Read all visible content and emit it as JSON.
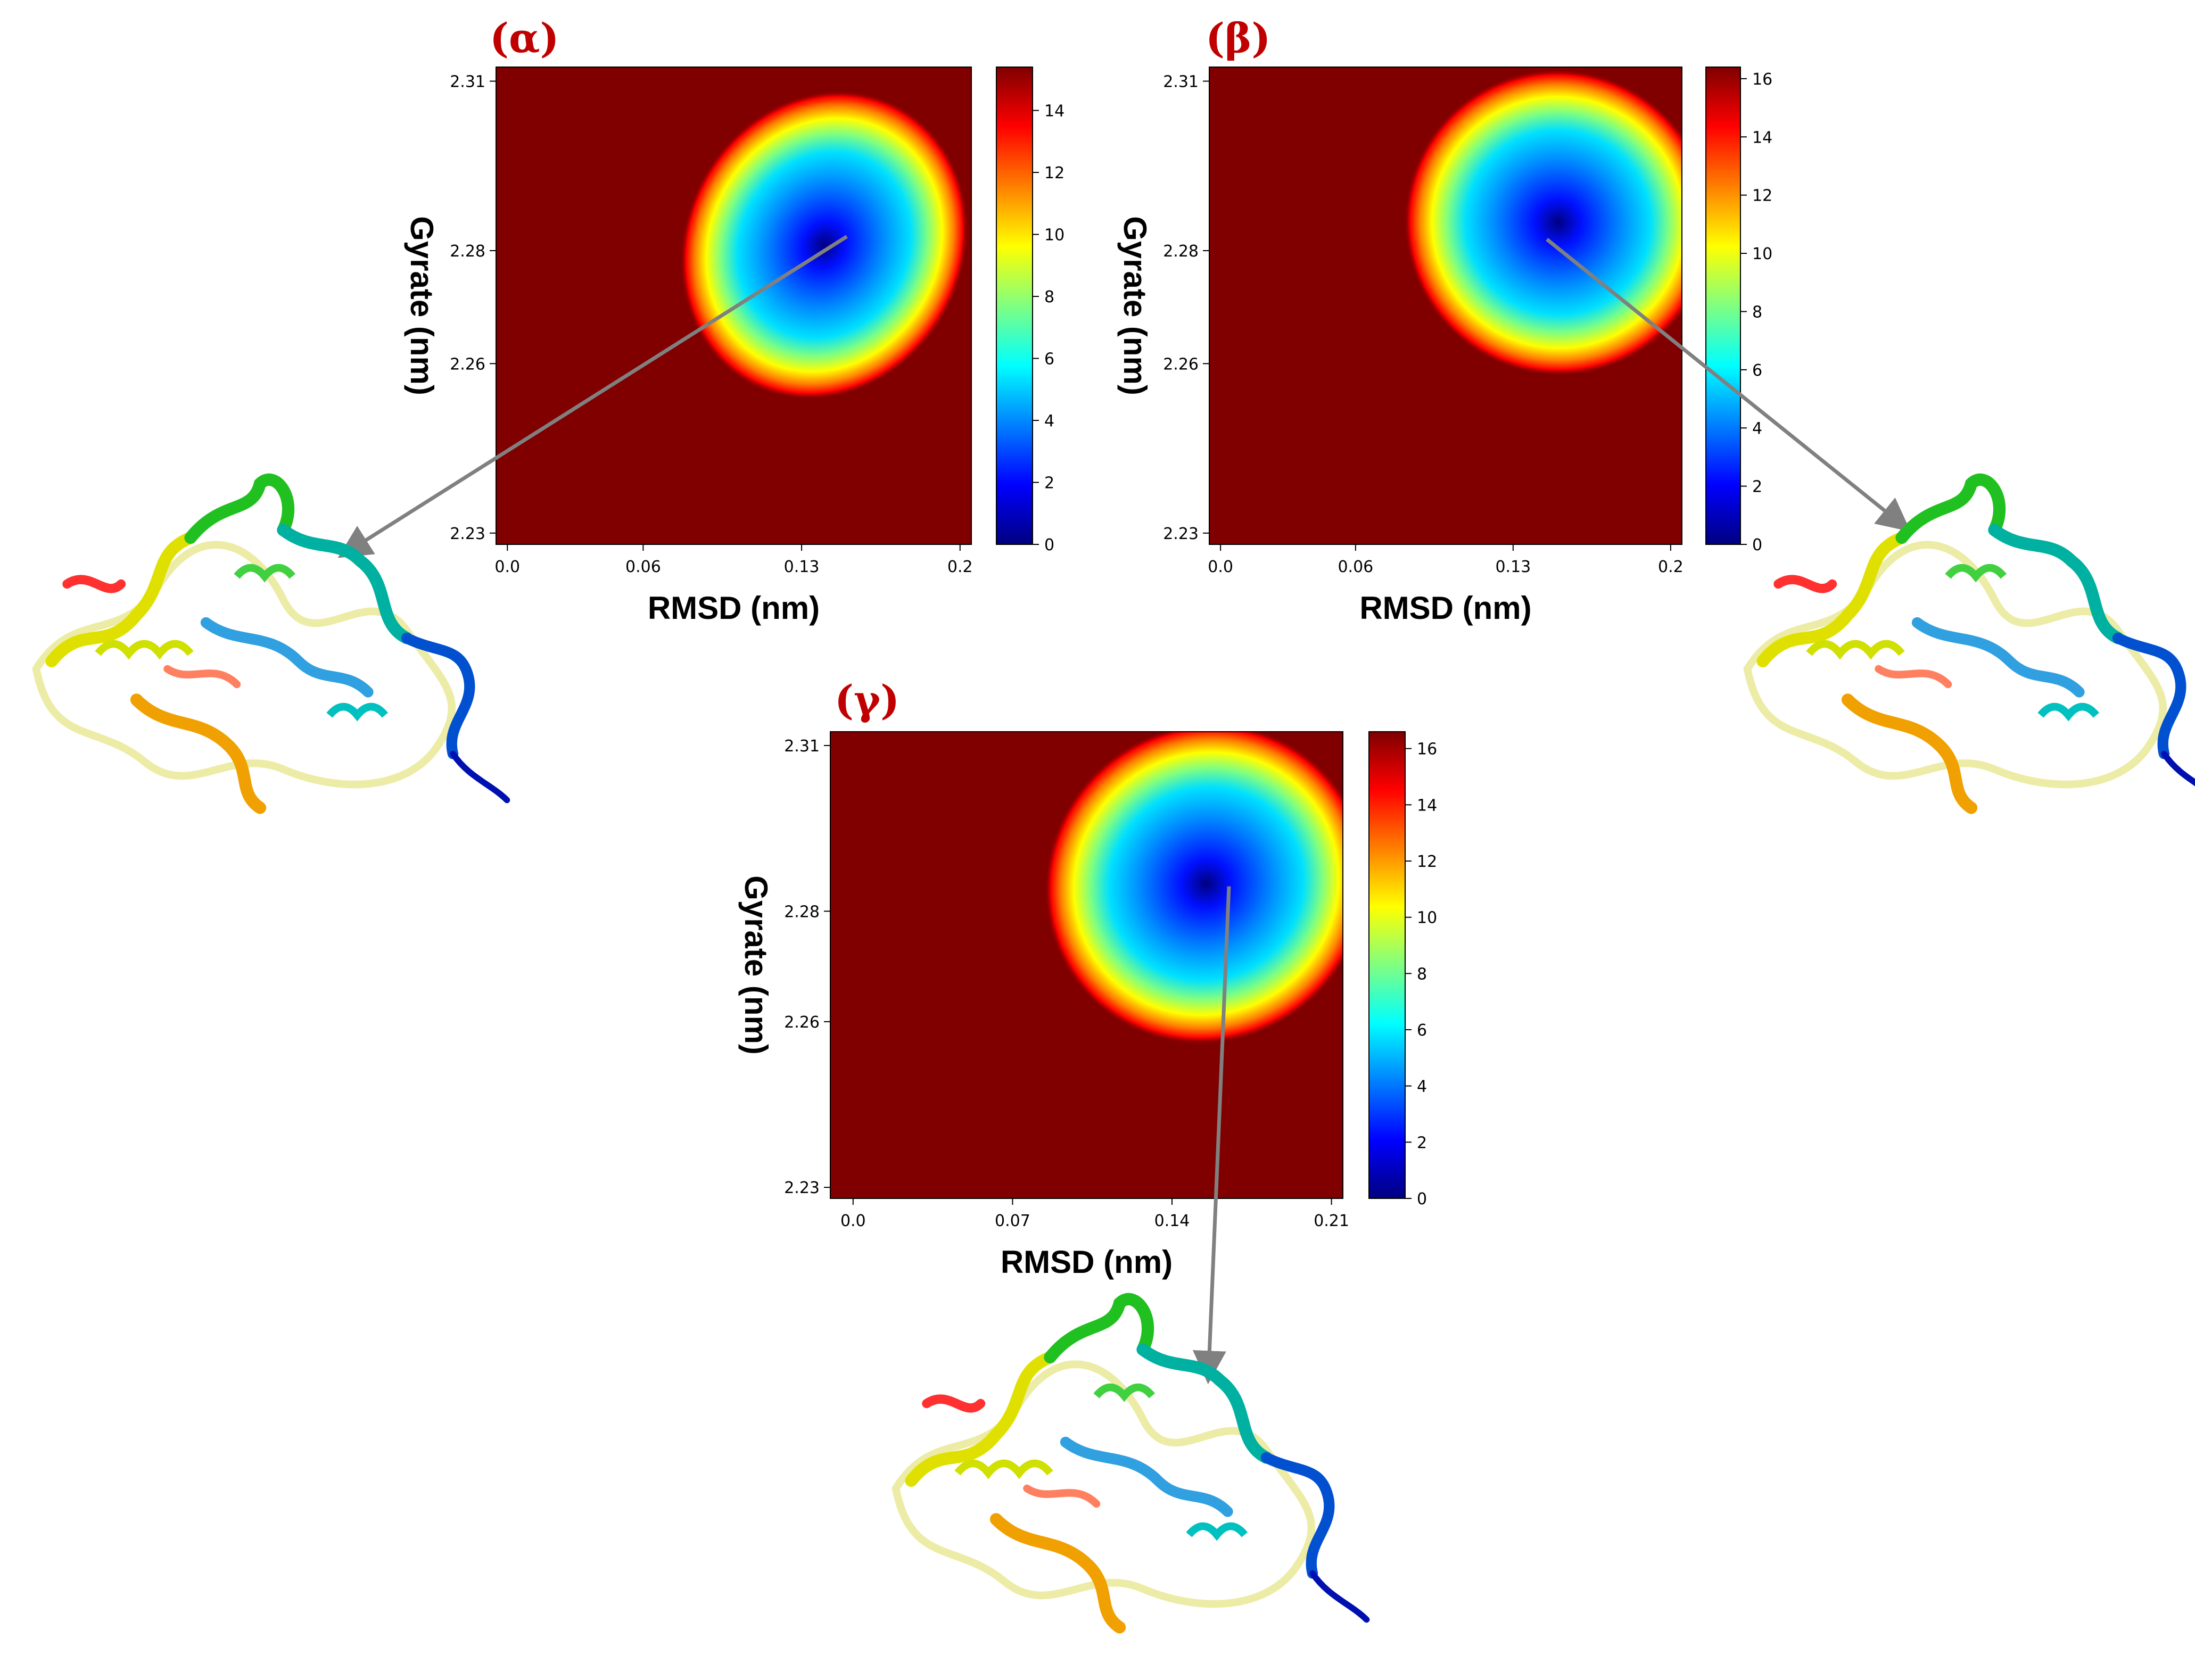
{
  "colors": {
    "panel_label": "#c00000",
    "background_field": "#800000",
    "arrow": "#808080"
  },
  "colormap": "jet",
  "icons": [
    "protein-ribbon-structure"
  ],
  "chart_data": [
    {
      "type": "heatmap",
      "panel_label": "(α)",
      "xlabel": "RMSD (nm)",
      "ylabel": "Gyrate (nm)",
      "xlim": [
        -0.005,
        0.205
      ],
      "ylim": [
        2.228,
        2.3125
      ],
      "x_ticks": [
        0.0,
        0.06,
        0.13,
        0.2
      ],
      "x_tick_labels": [
        "0.0",
        "0.06",
        "0.13",
        "0.2"
      ],
      "y_ticks": [
        2.23,
        2.26,
        2.28,
        2.31
      ],
      "y_tick_labels": [
        "2.23",
        "2.26",
        "2.28",
        "2.31"
      ],
      "colorbar": {
        "min": 0,
        "max": 15.4,
        "ticks": [
          0,
          2,
          4,
          6,
          8,
          10,
          12,
          14
        ],
        "tick_labels": [
          "0",
          "2",
          "4",
          "6",
          "8",
          "10",
          "12",
          "14"
        ]
      },
      "basin": {
        "center": [
          0.14,
          2.281
        ],
        "semi_major": 0.07,
        "semi_minor": 0.0095,
        "angle_deg": 62
      },
      "arrow_from": [
        0.15,
        2.2825
      ]
    },
    {
      "type": "heatmap",
      "panel_label": "(β)",
      "xlabel": "RMSD (nm)",
      "ylabel": "Gyrate (nm)",
      "xlim": [
        -0.005,
        0.205
      ],
      "ylim": [
        2.228,
        2.3125
      ],
      "x_ticks": [
        0.0,
        0.06,
        0.13,
        0.2
      ],
      "x_tick_labels": [
        "0.0",
        "0.06",
        "0.13",
        "0.2"
      ],
      "y_ticks": [
        2.23,
        2.26,
        2.28,
        2.31
      ],
      "y_tick_labels": [
        "2.23",
        "2.26",
        "2.28",
        "2.31"
      ],
      "colorbar": {
        "min": 0,
        "max": 16.4,
        "ticks": [
          0,
          2,
          4,
          6,
          8,
          10,
          12,
          14,
          16
        ],
        "tick_labels": [
          "0",
          "2",
          "4",
          "6",
          "8",
          "10",
          "12",
          "14",
          "16"
        ]
      },
      "basin": {
        "center": [
          0.15,
          2.285
        ],
        "semi_major": 0.068,
        "semi_minor": 0.0105,
        "angle_deg": 60
      },
      "arrow_from": [
        0.145,
        2.282
      ]
    },
    {
      "type": "heatmap",
      "panel_label": "(γ)",
      "xlabel": "RMSD (nm)",
      "ylabel": "Gyrate (nm)",
      "xlim": [
        -0.01,
        0.215
      ],
      "ylim": [
        2.228,
        2.3125
      ],
      "x_ticks": [
        0.0,
        0.07,
        0.14,
        0.21
      ],
      "x_tick_labels": [
        "0.0",
        "0.07",
        "0.14",
        "0.21"
      ],
      "y_ticks": [
        2.23,
        2.26,
        2.28,
        2.31
      ],
      "y_tick_labels": [
        "2.23",
        "2.26",
        "2.28",
        "2.31"
      ],
      "colorbar": {
        "min": 0,
        "max": 16.6,
        "ticks": [
          0,
          2,
          4,
          6,
          8,
          10,
          12,
          14,
          16
        ],
        "tick_labels": [
          "0",
          "2",
          "4",
          "6",
          "8",
          "10",
          "12",
          "14",
          "16"
        ]
      },
      "basin": {
        "center": [
          0.155,
          2.285
        ],
        "semi_major": 0.072,
        "semi_minor": 0.011,
        "angle_deg": 40
      },
      "arrow_from": [
        0.165,
        2.2845
      ]
    }
  ]
}
